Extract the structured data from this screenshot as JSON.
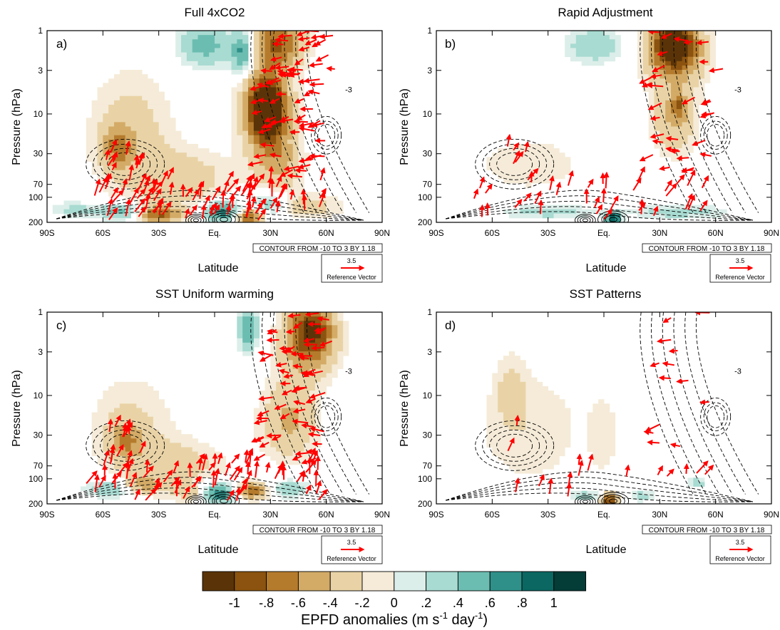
{
  "chart_data": {
    "type": "heatmap",
    "panels": [
      {
        "id": "a",
        "label": "a)",
        "title": "Full 4xCO2"
      },
      {
        "id": "b",
        "label": "b)",
        "title": "Rapid Adjustment"
      },
      {
        "id": "c",
        "label": "c)",
        "title": "SST Uniform warming"
      },
      {
        "id": "d",
        "label": "d)",
        "title": "SST Patterns"
      }
    ],
    "xlabel": "Latitude",
    "ylabel": "Pressure (hPa)",
    "x_ticks": [
      "90S",
      "60S",
      "30S",
      "Eq.",
      "30N",
      "60N",
      "90N"
    ],
    "x_tick_values": [
      -90,
      -60,
      -30,
      0,
      30,
      60,
      90
    ],
    "xlim": [
      -90,
      90
    ],
    "y_scale": "log",
    "y_ticks": [
      "1",
      "3",
      "10",
      "30",
      "70",
      "100",
      "200"
    ],
    "y_tick_values": [
      1,
      3,
      10,
      30,
      70,
      100,
      200
    ],
    "ylim": [
      200,
      1
    ],
    "contour_info": "CONTOUR FROM -10 TO 3 BY 1.18",
    "contour_labels": {
      "a": "-3",
      "b": "-3",
      "c": "-3",
      "d": "-3"
    },
    "reference_vector": {
      "magnitude": "3.5",
      "label": "Reference Vector"
    },
    "colorbar": {
      "title_main": "EPFD anomalies (m s",
      "title_sup1": "-1",
      "title_mid": " day",
      "title_sup2": "-1",
      "title_end": ")",
      "tick_labels": [
        "-1",
        "-.8",
        "-.6",
        "-.4",
        "-.2",
        "0",
        ".2",
        ".4",
        ".6",
        ".8",
        "1"
      ],
      "tick_values": [
        -1,
        -0.8,
        -0.6,
        -0.4,
        -0.2,
        0,
        0.2,
        0.4,
        0.6,
        0.8,
        1
      ],
      "colors": [
        "#5a3408",
        "#8b530f",
        "#b57b2d",
        "#d3ab67",
        "#e9d3a6",
        "#f5ebd8",
        "#dceee9",
        "#a8dbd2",
        "#6cbdb1",
        "#2f9089",
        "#0b6762",
        "#043c37"
      ]
    },
    "anomaly_blobs": {
      "a": [
        {
          "lat": -45,
          "p": 18,
          "rlat": 22,
          "rdec": 0.75,
          "v": -0.3
        },
        {
          "lat": -52,
          "p": 25,
          "rlat": 8,
          "rdec": 0.25,
          "v": -0.5
        },
        {
          "lat": -15,
          "p": 60,
          "rlat": 25,
          "rdec": 0.35,
          "v": -0.3
        },
        {
          "lat": 28,
          "p": 9,
          "rlat": 13,
          "rdec": 0.5,
          "v": -0.9
        },
        {
          "lat": 28,
          "p": 9,
          "rlat": 8,
          "rdec": 0.3,
          "v": -1.05
        },
        {
          "lat": 35,
          "p": 40,
          "rlat": 12,
          "rdec": 0.35,
          "v": -0.4
        },
        {
          "lat": 34,
          "p": 1.4,
          "rlat": 14,
          "rdec": 0.3,
          "v": -0.8
        },
        {
          "lat": -5,
          "p": 1.5,
          "rlat": 14,
          "rdec": 0.25,
          "v": 0.5
        },
        {
          "lat": 15,
          "p": 1.8,
          "rlat": 6,
          "rdec": 0.25,
          "v": 0.7
        },
        {
          "lat": 5,
          "p": 150,
          "rlat": 10,
          "rdec": 0.12,
          "v": 0.8
        },
        {
          "lat": -30,
          "p": 160,
          "rlat": 12,
          "rdec": 0.1,
          "v": -0.8
        },
        {
          "lat": -50,
          "p": 150,
          "rlat": 12,
          "rdec": 0.1,
          "v": 0.6
        },
        {
          "lat": 18,
          "p": 170,
          "rlat": 8,
          "rdec": 0.1,
          "v": -0.9
        },
        {
          "lat": 30,
          "p": 120,
          "rlat": 10,
          "rdec": 0.15,
          "v": 0.4
        },
        {
          "lat": 50,
          "p": 130,
          "rlat": 18,
          "rdec": 0.15,
          "v": -0.3
        },
        {
          "lat": -75,
          "p": 140,
          "rlat": 12,
          "rdec": 0.1,
          "v": 0.25
        }
      ],
      "b": [
        {
          "lat": 38,
          "p": 1.4,
          "rlat": 12,
          "rdec": 0.3,
          "v": -1.0
        },
        {
          "lat": 38,
          "p": 2,
          "rlat": 16,
          "rdec": 0.4,
          "v": -0.5
        },
        {
          "lat": -5,
          "p": 1.5,
          "rlat": 14,
          "rdec": 0.2,
          "v": 0.4
        },
        {
          "lat": 38,
          "p": 12,
          "rlat": 12,
          "rdec": 0.4,
          "v": -0.4
        },
        {
          "lat": 40,
          "p": 8,
          "rlat": 4,
          "rdec": 0.15,
          "v": -0.5
        },
        {
          "lat": -40,
          "p": 40,
          "rlat": 35,
          "rdec": 0.4,
          "v": -0.15
        },
        {
          "lat": 5,
          "p": 180,
          "rlat": 4,
          "rdec": 0.07,
          "v": 1.0
        },
        {
          "lat": -30,
          "p": 150,
          "rlat": 25,
          "rdec": 0.08,
          "v": 0.3
        },
        {
          "lat": 40,
          "p": 150,
          "rlat": 25,
          "rdec": 0.08,
          "v": 0.3
        }
      ],
      "c": [
        {
          "lat": 52,
          "p": 1.5,
          "rlat": 12,
          "rdec": 0.3,
          "v": -0.9
        },
        {
          "lat": 50,
          "p": 3,
          "rlat": 15,
          "rdec": 0.35,
          "v": -0.5
        },
        {
          "lat": 18,
          "p": 1.6,
          "rlat": 5,
          "rdec": 0.25,
          "v": 0.6
        },
        {
          "lat": -45,
          "p": 25,
          "rlat": 22,
          "rdec": 0.6,
          "v": -0.25
        },
        {
          "lat": -48,
          "p": 35,
          "rlat": 8,
          "rdec": 0.2,
          "v": -0.45
        },
        {
          "lat": 40,
          "p": 20,
          "rlat": 15,
          "rdec": 0.45,
          "v": -0.45
        },
        {
          "lat": -20,
          "p": 70,
          "rlat": 25,
          "rdec": 0.3,
          "v": -0.3
        },
        {
          "lat": -55,
          "p": 130,
          "rlat": 15,
          "rdec": 0.12,
          "v": 0.4
        },
        {
          "lat": -40,
          "p": 120,
          "rlat": 10,
          "rdec": 0.1,
          "v": -0.5
        },
        {
          "lat": 2,
          "p": 150,
          "rlat": 9,
          "rdec": 0.12,
          "v": 0.9
        },
        {
          "lat": 20,
          "p": 140,
          "rlat": 8,
          "rdec": 0.1,
          "v": -0.8
        },
        {
          "lat": 40,
          "p": 130,
          "rlat": 10,
          "rdec": 0.1,
          "v": 0.4
        },
        {
          "lat": -10,
          "p": 150,
          "rlat": 12,
          "rdec": 0.1,
          "v": -0.3
        }
      ],
      "d": [
        {
          "lat": -40,
          "p": 25,
          "rlat": 30,
          "rdec": 0.7,
          "v": -0.18
        },
        {
          "lat": -50,
          "p": 8,
          "rlat": 8,
          "rdec": 0.4,
          "v": -0.2
        },
        {
          "lat": 0,
          "p": 30,
          "rlat": 8,
          "rdec": 0.5,
          "v": -0.15
        },
        {
          "lat": 3,
          "p": 180,
          "rlat": 4,
          "rdec": 0.08,
          "v": -1.0
        },
        {
          "lat": -10,
          "p": 160,
          "rlat": 10,
          "rdec": 0.07,
          "v": 0.3
        },
        {
          "lat": 20,
          "p": 160,
          "rlat": 6,
          "rdec": 0.07,
          "v": 0.3
        },
        {
          "lat": 50,
          "p": 110,
          "rlat": 5,
          "rdec": 0.07,
          "v": 0.3
        }
      ]
    },
    "vector_density": {
      "a": 1.0,
      "b": 0.45,
      "c": 0.85,
      "d": 0.18
    }
  }
}
